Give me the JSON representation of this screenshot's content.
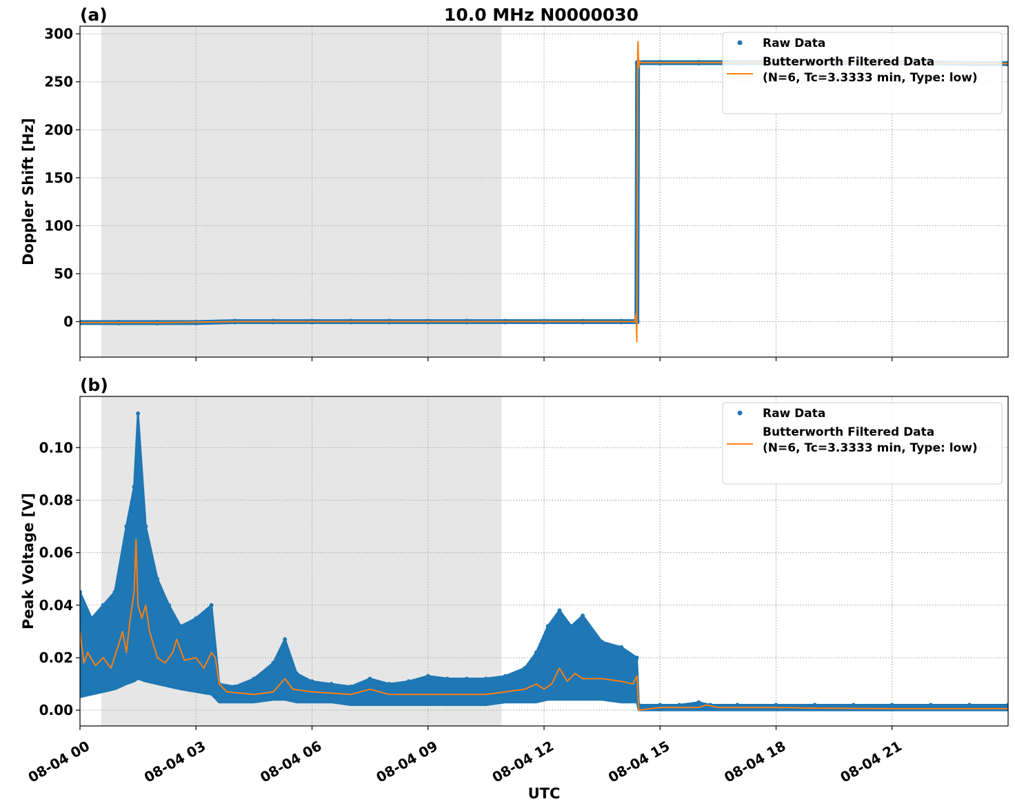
{
  "figure_title": "10.0 MHz N0000030",
  "chart_data": [
    {
      "type": "scatter",
      "panel_label": "(a)",
      "title": "10.0 MHz N0000030",
      "xlabel": "",
      "ylabel": "Doppler Shift [Hz]",
      "x_unit": "hours since 08-04 00 UTC",
      "xlim": [
        0,
        24
      ],
      "ylim": [
        -37,
        308
      ],
      "x_ticks": [
        0,
        3,
        6,
        9,
        12,
        15,
        18,
        21
      ],
      "x_tick_labels": [],
      "y_ticks": [
        0,
        50,
        100,
        150,
        200,
        250,
        300
      ],
      "y_tick_labels": [
        "0",
        "50",
        "100",
        "150",
        "200",
        "250",
        "300"
      ],
      "grid": true,
      "shaded_region": {
        "x_start": 0.55,
        "x_end": 10.9
      },
      "legend_position": "top-right",
      "series": [
        {
          "name": "Raw Data",
          "kind": "points",
          "x": [
            0,
            1,
            2,
            3,
            4,
            5,
            6,
            7,
            8,
            9,
            10,
            11,
            12,
            13,
            14,
            14.4,
            14.42,
            14.45,
            15,
            16,
            17,
            18,
            19,
            20,
            21,
            22,
            23,
            24
          ],
          "y": [
            -1,
            -1,
            -1,
            -1,
            0,
            0,
            0,
            0,
            0,
            0,
            0,
            0,
            0,
            0,
            0,
            0,
            270,
            270,
            270,
            270,
            270,
            270,
            270,
            270,
            270,
            270,
            269,
            269
          ]
        },
        {
          "name": "Butterworth Filtered Data\n(N=6, Tc=3.3333 min, Type: low)",
          "kind": "line",
          "x": [
            0,
            2,
            4,
            6,
            8,
            10,
            12,
            14,
            14.35,
            14.38,
            14.4,
            14.42,
            14.43,
            14.45,
            14.47,
            14.5,
            15,
            18,
            21,
            24
          ],
          "y": [
            -1,
            -1,
            0,
            0,
            0,
            0,
            0,
            0,
            0,
            8,
            -21,
            280,
            292,
            265,
            272,
            270,
            270,
            270,
            270,
            269
          ]
        }
      ]
    },
    {
      "type": "scatter",
      "panel_label": "(b)",
      "title": "",
      "xlabel": "UTC",
      "ylabel": "Peak Voltage [V]",
      "x_unit": "hours since 08-04 00 UTC",
      "xlim": [
        0,
        24
      ],
      "ylim": [
        -0.006,
        0.1195
      ],
      "x_ticks": [
        0,
        3,
        6,
        9,
        12,
        15,
        18,
        21
      ],
      "x_tick_labels": [
        "08-04 00",
        "08-04 03",
        "08-04 06",
        "08-04 09",
        "08-04 12",
        "08-04 15",
        "08-04 18",
        "08-04 21"
      ],
      "y_ticks": [
        0,
        0.02,
        0.04,
        0.06,
        0.08,
        0.1
      ],
      "y_tick_labels": [
        "0.00",
        "0.02",
        "0.04",
        "0.06",
        "0.08",
        "0.10"
      ],
      "grid": true,
      "shaded_region": {
        "x_start": 0.55,
        "x_end": 10.9
      },
      "legend_position": "top-right",
      "series": [
        {
          "name": "Raw Data",
          "kind": "band",
          "x": [
            0,
            0.3,
            0.6,
            0.9,
            1.2,
            1.4,
            1.5,
            1.7,
            2.0,
            2.3,
            2.6,
            3.0,
            3.4,
            3.6,
            4.0,
            4.5,
            5.0,
            5.3,
            5.6,
            6.0,
            6.5,
            7.0,
            7.5,
            8.0,
            8.5,
            9.0,
            9.5,
            10.0,
            10.5,
            11.0,
            11.5,
            11.8,
            12.1,
            12.4,
            12.7,
            13.0,
            13.5,
            14.0,
            14.4,
            14.45,
            15.0,
            15.5,
            16.0,
            16.3,
            17.0,
            18.0,
            19.0,
            20.0,
            21.0,
            22.0,
            23.0,
            24.0
          ],
          "y_min": [
            0.005,
            0.006,
            0.007,
            0.008,
            0.01,
            0.011,
            0.012,
            0.011,
            0.01,
            0.009,
            0.008,
            0.007,
            0.006,
            0.003,
            0.003,
            0.003,
            0.004,
            0.004,
            0.003,
            0.003,
            0.003,
            0.002,
            0.002,
            0.002,
            0.002,
            0.002,
            0.002,
            0.002,
            0.002,
            0.003,
            0.003,
            0.003,
            0.004,
            0.004,
            0.004,
            0.004,
            0.004,
            0.003,
            0.003,
            0.0,
            0.0,
            0.0,
            0.0,
            0.0,
            0.0,
            0.0,
            0.0,
            0.0,
            0.0,
            0.0,
            0.0,
            0.0
          ],
          "y_max": [
            0.045,
            0.035,
            0.04,
            0.045,
            0.07,
            0.085,
            0.113,
            0.07,
            0.05,
            0.04,
            0.032,
            0.035,
            0.04,
            0.01,
            0.009,
            0.012,
            0.018,
            0.027,
            0.014,
            0.011,
            0.01,
            0.009,
            0.012,
            0.01,
            0.011,
            0.013,
            0.012,
            0.012,
            0.012,
            0.013,
            0.016,
            0.022,
            0.032,
            0.038,
            0.032,
            0.036,
            0.026,
            0.024,
            0.02,
            0.002,
            0.002,
            0.002,
            0.003,
            0.002,
            0.002,
            0.002,
            0.002,
            0.002,
            0.002,
            0.002,
            0.002,
            0.002
          ]
        },
        {
          "name": "Butterworth Filtered Data\n(N=6, Tc=3.3333 min, Type: low)",
          "kind": "line",
          "x": [
            0,
            0.1,
            0.2,
            0.4,
            0.6,
            0.8,
            1.0,
            1.1,
            1.2,
            1.3,
            1.4,
            1.45,
            1.5,
            1.6,
            1.7,
            1.8,
            2.0,
            2.2,
            2.4,
            2.5,
            2.7,
            3.0,
            3.2,
            3.4,
            3.5,
            3.6,
            3.8,
            4.5,
            5.0,
            5.3,
            5.5,
            6.0,
            7.0,
            7.5,
            8.0,
            9.0,
            10.0,
            10.5,
            11.0,
            11.5,
            11.8,
            12.0,
            12.2,
            12.4,
            12.6,
            12.8,
            13.0,
            13.5,
            14.0,
            14.3,
            14.4,
            14.45,
            15.0,
            15.5,
            16.0,
            16.2,
            16.5,
            17.0,
            18.0,
            19.0,
            20.0,
            21.0,
            22.0,
            23.0,
            24.0
          ],
          "y": [
            0.03,
            0.018,
            0.022,
            0.017,
            0.02,
            0.016,
            0.025,
            0.03,
            0.022,
            0.035,
            0.045,
            0.065,
            0.04,
            0.035,
            0.04,
            0.03,
            0.02,
            0.018,
            0.022,
            0.027,
            0.019,
            0.02,
            0.016,
            0.022,
            0.02,
            0.01,
            0.007,
            0.006,
            0.007,
            0.012,
            0.008,
            0.007,
            0.006,
            0.008,
            0.006,
            0.006,
            0.006,
            0.006,
            0.007,
            0.008,
            0.01,
            0.008,
            0.01,
            0.016,
            0.011,
            0.014,
            0.012,
            0.012,
            0.011,
            0.01,
            0.013,
            0.0,
            0.001,
            0.001,
            0.001,
            0.002,
            0.001,
            0.001,
            0.001,
            0.0008,
            0.0007,
            0.0006,
            0.0006,
            0.0006,
            0.0006
          ]
        }
      ]
    }
  ],
  "legend": {
    "raw_label": "Raw Data",
    "filtered_line1": "Butterworth Filtered Data",
    "filtered_line2": "(N=6, Tc=3.3333 min, Type: low)"
  },
  "colors": {
    "raw": "#1f77b4",
    "filtered": "#ff7f0e",
    "shade": "#e6e6e6",
    "grid": "#b0b0b0"
  }
}
